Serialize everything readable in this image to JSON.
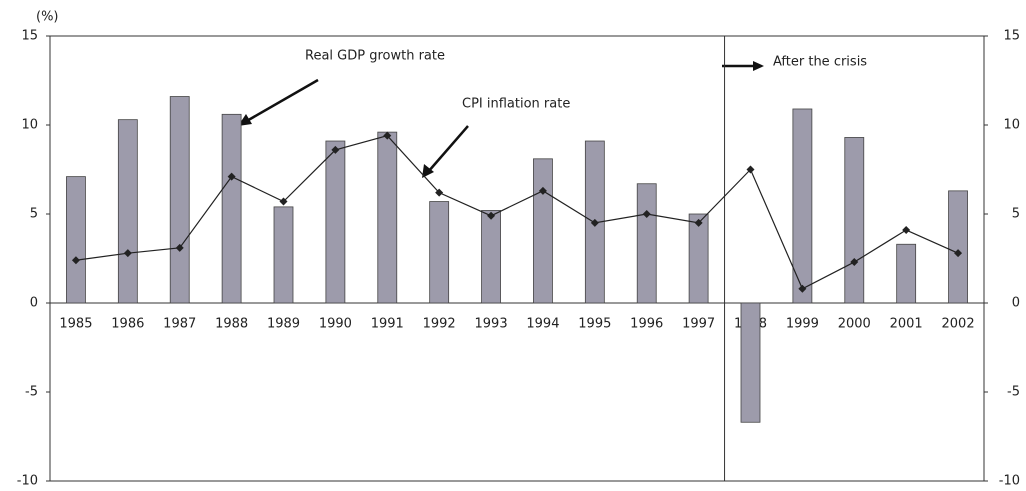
{
  "chart_data": {
    "type": "bar-line",
    "y_unit": "(%)",
    "annotation": "After the crisis",
    "categories": [
      "1985",
      "1986",
      "1987",
      "1988",
      "1989",
      "1990",
      "1991",
      "1992",
      "1993",
      "1994",
      "1995",
      "1996",
      "1997",
      "1998",
      "1999",
      "2000",
      "2001",
      "2002"
    ],
    "series": [
      {
        "name": "Real GDP growth rate",
        "type": "bar",
        "color": "#9d9bab",
        "values": [
          7.1,
          10.3,
          11.6,
          10.6,
          5.4,
          9.1,
          9.6,
          5.7,
          5.2,
          8.1,
          9.1,
          6.7,
          5.0,
          -6.7,
          10.9,
          9.3,
          3.3,
          6.3
        ]
      },
      {
        "name": "CPI inflation rate",
        "type": "line",
        "color": "#222222",
        "values": [
          2.4,
          2.8,
          3.1,
          7.1,
          5.7,
          8.6,
          9.4,
          6.2,
          4.9,
          6.3,
          4.5,
          5.0,
          4.5,
          7.5,
          0.8,
          2.3,
          4.1,
          2.8
        ]
      }
    ],
    "ylim": [
      -10,
      15
    ],
    "yticks": [
      -10,
      -5,
      0,
      5,
      10,
      15
    ],
    "y2lim": [
      -10,
      15
    ],
    "y2ticks": [
      -10,
      -5,
      0,
      5,
      10,
      15
    ]
  }
}
